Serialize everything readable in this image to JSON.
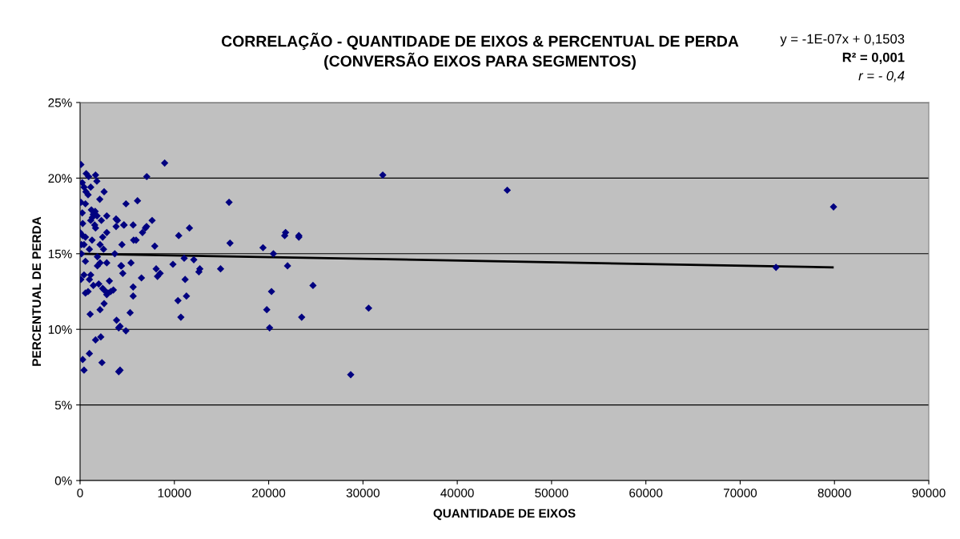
{
  "chart_data": {
    "type": "scatter",
    "title": "CORRELAÇÃO - QUANTIDADE DE EIXOS & PERCENTUAL DE PERDA\n(CONVERSÃO EIXOS PARA SEGMENTOS)",
    "xlabel": "QUANTIDADE DE EIXOS",
    "ylabel": "PERCENTUAL DE PERDA",
    "annotations": [
      "y = -1E-07x + 0,1503",
      "R² = 0,001",
      "r = - 0,4"
    ],
    "xlim": [
      0,
      90000
    ],
    "xticks": [
      0,
      10000,
      20000,
      30000,
      40000,
      50000,
      60000,
      70000,
      80000,
      90000
    ],
    "ylim": [
      0,
      25
    ],
    "yticks": [
      {
        "value": 0,
        "label": "0%"
      },
      {
        "value": 5,
        "label": "5%"
      },
      {
        "value": 10,
        "label": "10%"
      },
      {
        "value": 15,
        "label": "15%"
      },
      {
        "value": 20,
        "label": "20%"
      },
      {
        "value": 25,
        "label": "25%"
      }
    ],
    "grid": "y",
    "legend": false,
    "series": [
      {
        "color": "#000080",
        "marker": "diamond",
        "x": [
          32100,
          45300,
          79900,
          73800,
          30600,
          28700,
          24700,
          23500,
          23200,
          22000,
          21700,
          20500,
          20300,
          20100,
          19800,
          19400,
          15800,
          15900,
          14900,
          12600,
          8970,
          7070,
          4870,
          6090,
          4630,
          5630,
          7640,
          7050,
          6930,
          6620,
          11600,
          10460,
          5680,
          5940,
          4440,
          7920,
          21790,
          23200,
          11040,
          12060,
          9850,
          5400,
          4390,
          4530,
          8070,
          8490,
          8210,
          6510,
          11140,
          5630,
          12700,
          5630,
          11280,
          10380,
          5310,
          10690,
          4860,
          4240,
          4240,
          85,
          650,
          910,
          1640,
          1780,
          230,
          1130,
          420,
          620,
          850,
          2550,
          2090,
          85,
          570,
          230,
          1200,
          1400,
          1600,
          1800,
          1300,
          1500,
          2830,
          2260,
          3820,
          3960,
          1130,
          1550,
          4670,
          3820,
          1640,
          280,
          2830,
          0,
          280,
          570,
          1270,
          2400,
          140,
          420,
          2120,
          990,
          2490,
          3680,
          140,
          570,
          1840,
          2830,
          2120,
          1840,
          4330,
          420,
          1130,
          85,
          990,
          3110,
          1980,
          2400,
          2550,
          2970,
          3250,
          3530,
          2830,
          570,
          850,
          1410,
          2550,
          2120,
          1070,
          3870,
          4100,
          1640,
          2200,
          990,
          280,
          2320,
          420,
          4100
        ],
        "values": [
          20.2,
          19.2,
          18.1,
          14.1,
          11.4,
          7.0,
          12.9,
          10.8,
          16.1,
          14.2,
          16.2,
          15.0,
          12.5,
          10.1,
          11.3,
          15.4,
          18.4,
          15.7,
          14.0,
          13.8,
          21.0,
          20.1,
          18.3,
          18.5,
          16.9,
          16.9,
          17.2,
          16.8,
          16.7,
          16.4,
          16.7,
          16.2,
          15.9,
          15.9,
          15.6,
          15.5,
          16.4,
          16.2,
          14.7,
          14.6,
          14.3,
          14.4,
          14.2,
          13.7,
          14.0,
          13.7,
          13.5,
          13.4,
          13.3,
          12.8,
          14.0,
          12.2,
          12.2,
          11.9,
          11.1,
          10.8,
          9.9,
          10.2,
          7.3,
          20.9,
          20.3,
          20.1,
          20.2,
          19.8,
          19.7,
          19.4,
          19.4,
          19.1,
          18.9,
          19.1,
          18.6,
          18.4,
          18.3,
          17.7,
          17.9,
          17.6,
          17.8,
          17.5,
          17.4,
          17.7,
          17.5,
          17.2,
          17.3,
          17.2,
          17.2,
          16.9,
          16.9,
          16.8,
          16.7,
          17.0,
          16.4,
          16.4,
          16.2,
          16.1,
          15.9,
          16.1,
          15.6,
          15.6,
          15.6,
          15.3,
          15.3,
          15.0,
          15.0,
          14.5,
          14.8,
          14.4,
          14.4,
          14.2,
          14.2,
          13.6,
          13.6,
          13.3,
          13.3,
          13.2,
          13.0,
          12.7,
          12.6,
          12.4,
          12.5,
          12.6,
          12.3,
          12.4,
          12.5,
          12.9,
          11.7,
          11.3,
          11.0,
          10.6,
          10.1,
          9.3,
          9.5,
          8.4,
          8.0,
          7.8,
          7.3,
          7.2
        ]
      },
      {
        "type": "line",
        "color": "#000000",
        "marker": "none",
        "x": [
          0,
          79800
        ],
        "values": [
          15.0,
          14.1
        ]
      }
    ]
  }
}
